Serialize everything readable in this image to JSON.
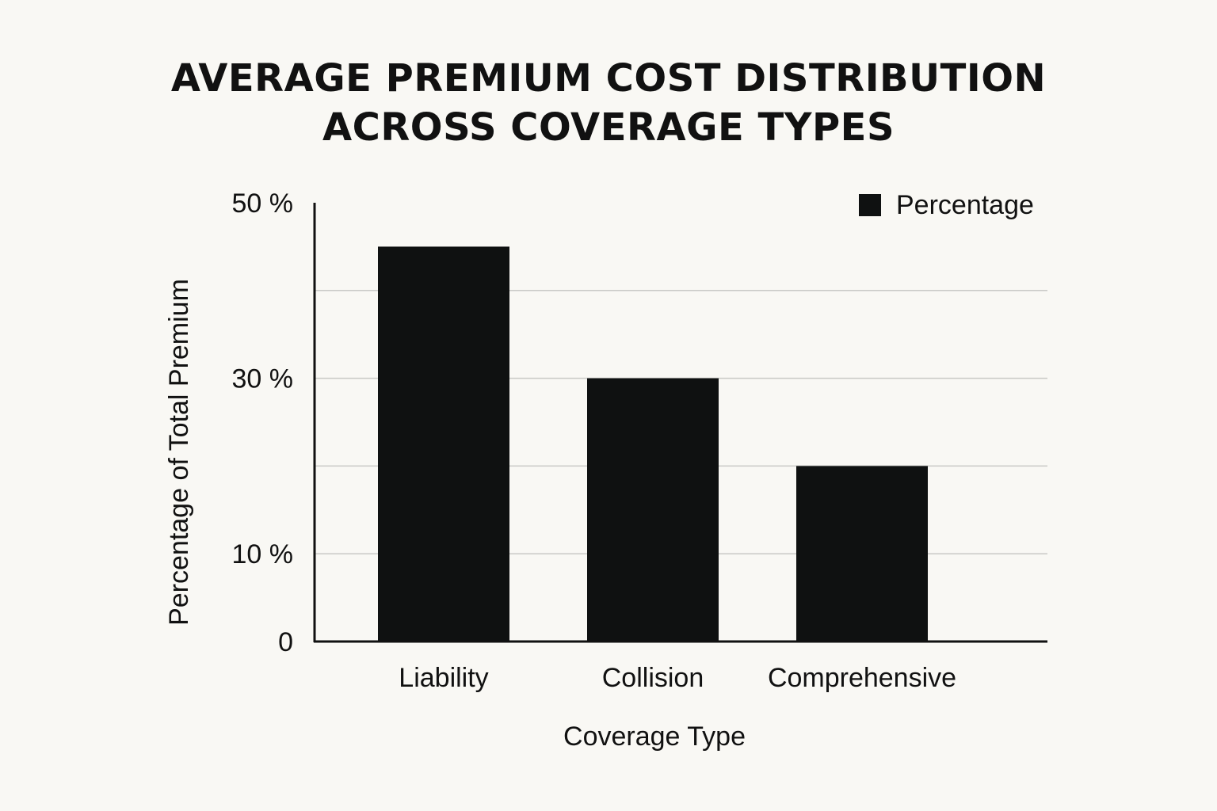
{
  "title_lines": [
    "AVERAGE PREMIUM COST DISTRIBUTION",
    "ACROSS COVERAGE TYPES"
  ],
  "chart_data": {
    "type": "bar",
    "title": "AVERAGE PREMIUM COST DISTRIBUTION ACROSS COVERAGE TYPES",
    "categories": [
      "Liability",
      "Collision",
      "Comprehensive"
    ],
    "series": [
      {
        "name": "Percentage",
        "values": [
          45,
          30,
          20
        ],
        "color": "#0f1111"
      }
    ],
    "xlabel": "Coverage Type",
    "ylabel": "Percentage of Total Premium",
    "ylim": [
      0,
      50
    ],
    "yticks": [
      {
        "value": 0,
        "label": "0"
      },
      {
        "value": 10,
        "label": "10 %"
      },
      {
        "value": 30,
        "label": "30 %"
      },
      {
        "value": 50,
        "label": "50 %"
      }
    ],
    "gridlines": [
      10,
      20,
      30,
      40
    ],
    "grid": true,
    "legend_position": "top-right",
    "colors": {
      "background": "#f9f8f4",
      "bar": "#0f1111",
      "axis": "#111111",
      "grid": "#c9c9c6"
    }
  }
}
